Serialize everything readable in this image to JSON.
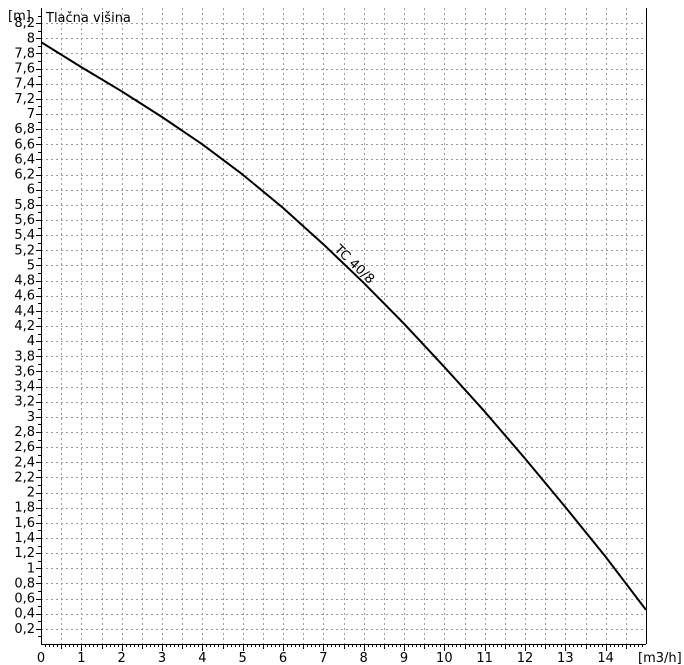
{
  "chart_data": {
    "type": "line",
    "title": "Tlačna višina",
    "ylabel": "[m]",
    "xlabel": "[m3/h]",
    "xlim": [
      0,
      15
    ],
    "ylim": [
      0,
      8.4
    ],
    "grid": true,
    "x_ticks": [
      "0",
      "1",
      "2",
      "3",
      "4",
      "5",
      "6",
      "7",
      "8",
      "9",
      "10",
      "11",
      "12",
      "13",
      "14"
    ],
    "y_ticks": [
      "0,2",
      "0,4",
      "0,6",
      "0,8",
      "1",
      "1,2",
      "1,4",
      "1,6",
      "1,8",
      "2",
      "2,2",
      "2,4",
      "2,6",
      "2,8",
      "3",
      "3,2",
      "3,4",
      "3,6",
      "3,8",
      "4",
      "4,2",
      "4,4",
      "4,6",
      "4,8",
      "5",
      "5,2",
      "5,4",
      "5,6",
      "5,8",
      "6",
      "6,2",
      "6,4",
      "6,6",
      "6,8",
      "7",
      "7,2",
      "7,4",
      "7,6",
      "7,8",
      "8",
      "8,2"
    ],
    "series": [
      {
        "name": "TC 40/8",
        "color": "#000000",
        "x": [
          0,
          1,
          2,
          3,
          4,
          5,
          6,
          7,
          8,
          9,
          10,
          11,
          12,
          13,
          14,
          15
        ],
        "y": [
          7.95,
          7.62,
          7.3,
          6.96,
          6.6,
          6.2,
          5.76,
          5.28,
          4.77,
          4.23,
          3.66,
          3.07,
          2.45,
          1.81,
          1.15,
          0.45
        ]
      }
    ]
  }
}
